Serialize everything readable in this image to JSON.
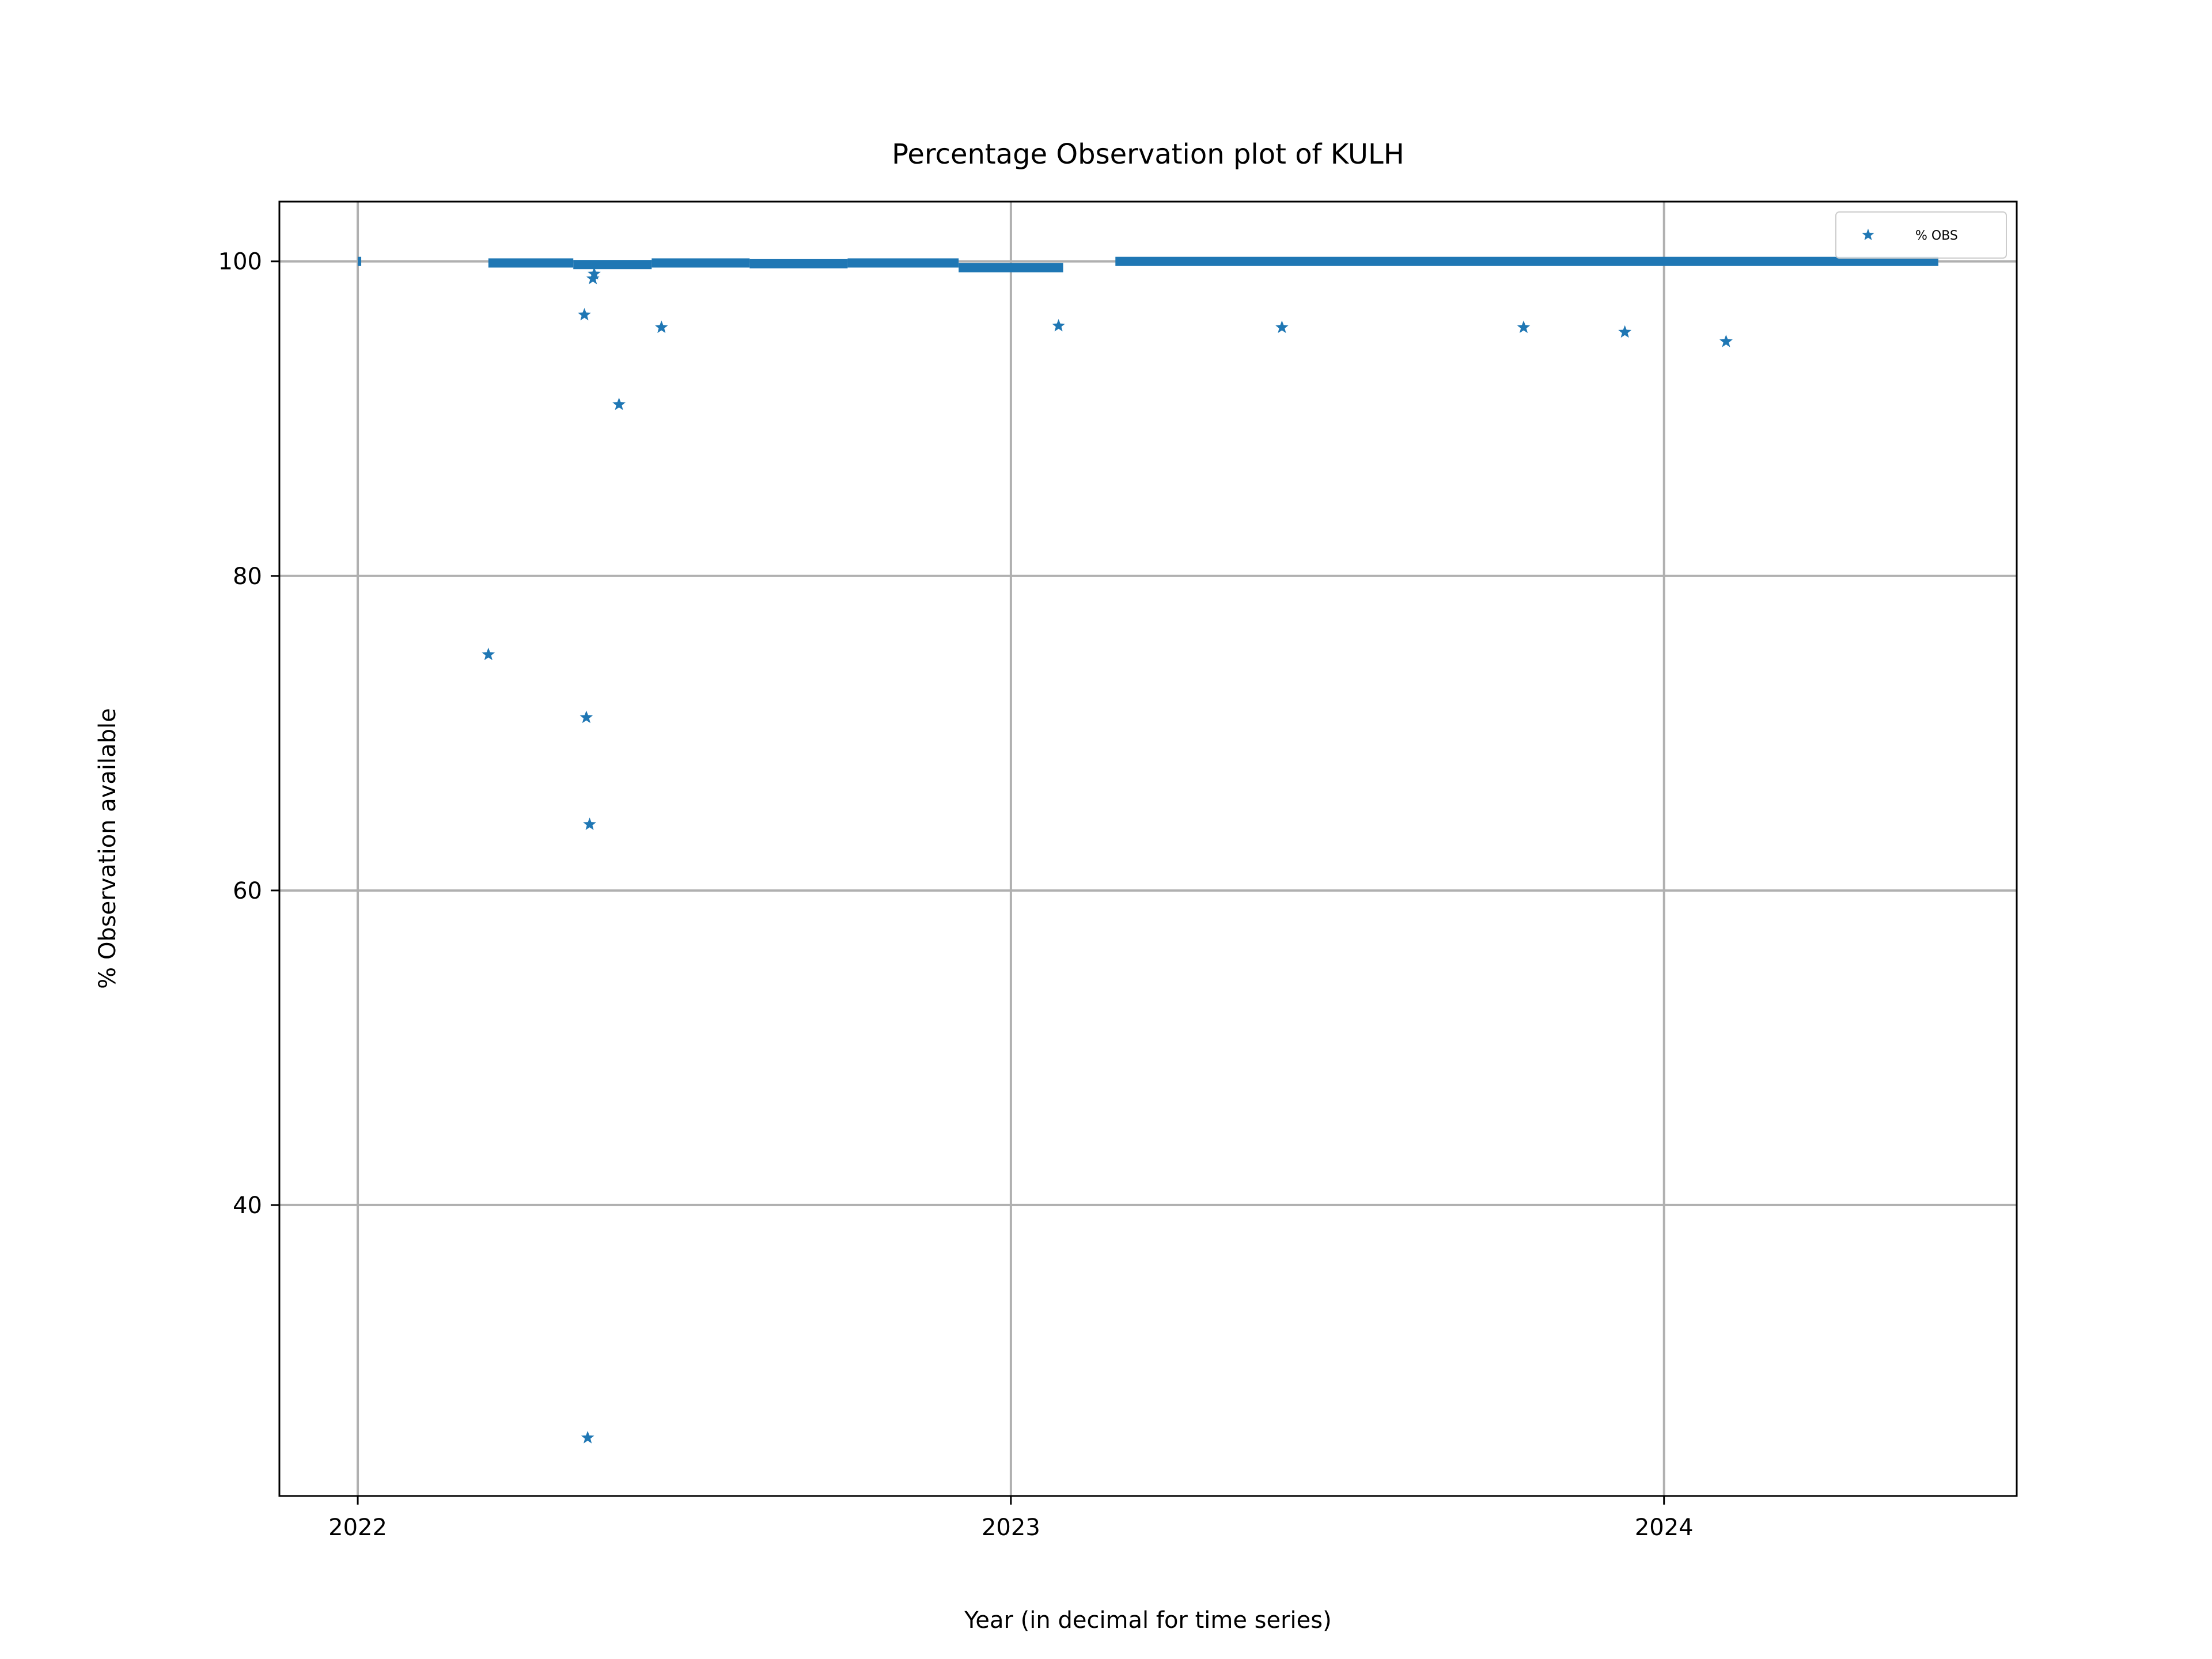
{
  "chart_data": {
    "type": "scatter",
    "title": "Percentage Observation plot of KULH",
    "xlabel": "Year (in decimal for time series)",
    "ylabel": "% Observation available",
    "xlim": [
      2021.88,
      2024.54
    ],
    "ylim": [
      21.5,
      103.8
    ],
    "x_ticks": [
      2022,
      2023,
      2024
    ],
    "y_ticks": [
      40,
      60,
      80,
      100
    ],
    "grid": true,
    "legend_position": "top-right",
    "marker": "star",
    "color": "#1f77b4",
    "series": [
      {
        "name": "% OBS",
        "dense_segments": [
          {
            "x_start": 2022.0,
            "x_end": 2022.005,
            "y": 100
          },
          {
            "x_start": 2022.2,
            "x_end": 2022.33,
            "y": 99.9
          },
          {
            "x_start": 2022.33,
            "x_end": 2022.45,
            "y": 99.8
          },
          {
            "x_start": 2022.45,
            "x_end": 2022.6,
            "y": 99.9
          },
          {
            "x_start": 2022.6,
            "x_end": 2022.75,
            "y": 99.85
          },
          {
            "x_start": 2022.75,
            "x_end": 2022.92,
            "y": 99.9
          },
          {
            "x_start": 2022.92,
            "x_end": 2023.08,
            "y": 99.6
          },
          {
            "x_start": 2023.16,
            "x_end": 2024.42,
            "y": 100
          }
        ],
        "points": [
          {
            "x": 2022.2,
            "y": 75
          },
          {
            "x": 2022.347,
            "y": 96.6
          },
          {
            "x": 2022.35,
            "y": 71
          },
          {
            "x": 2022.355,
            "y": 64.2
          },
          {
            "x": 2022.352,
            "y": 25.2
          },
          {
            "x": 2022.36,
            "y": 98.9
          },
          {
            "x": 2022.362,
            "y": 99.2
          },
          {
            "x": 2022.4,
            "y": 90.9
          },
          {
            "x": 2022.465,
            "y": 95.8
          },
          {
            "x": 2023.073,
            "y": 95.9
          },
          {
            "x": 2023.415,
            "y": 95.8
          },
          {
            "x": 2023.785,
            "y": 95.8
          },
          {
            "x": 2023.94,
            "y": 95.5
          },
          {
            "x": 2024.095,
            "y": 94.9
          }
        ]
      }
    ]
  }
}
